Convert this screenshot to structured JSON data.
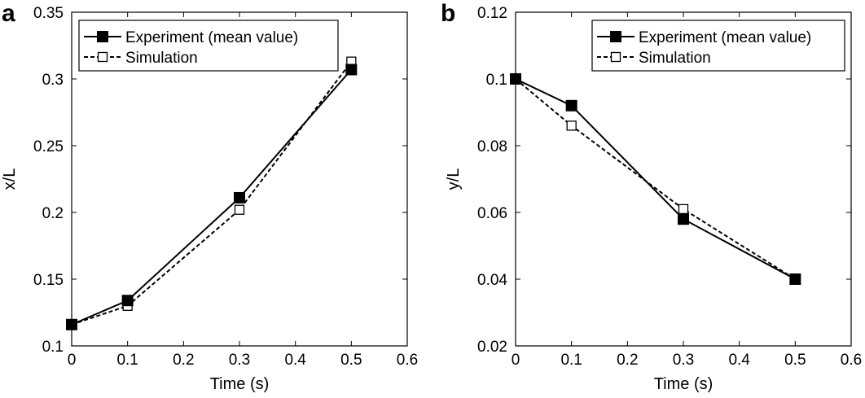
{
  "chart_data": [
    {
      "panel": "a",
      "type": "line",
      "xlabel": "Time (s)",
      "ylabel": "x/L",
      "xlim": [
        0,
        0.6
      ],
      "ylim": [
        0.1,
        0.35
      ],
      "xticks": [
        "0",
        "0.1",
        "0.2",
        "0.3",
        "0.4",
        "0.5",
        "0.6"
      ],
      "yticks": [
        "0.1",
        "0.15",
        "0.2",
        "0.25",
        "0.3",
        "0.35"
      ],
      "legend_position": "top-left",
      "series": [
        {
          "name": "Experiment (mean value)",
          "style": "solid",
          "marker": "filled-square",
          "x": [
            0,
            0.1,
            0.3,
            0.5
          ],
          "y": [
            0.116,
            0.134,
            0.211,
            0.307
          ]
        },
        {
          "name": "Simulation",
          "style": "dashed",
          "marker": "open-square",
          "x": [
            0,
            0.1,
            0.3,
            0.5
          ],
          "y": [
            0.116,
            0.13,
            0.202,
            0.313
          ]
        }
      ]
    },
    {
      "panel": "b",
      "type": "line",
      "xlabel": "Time (s)",
      "ylabel": "y/L",
      "xlim": [
        0,
        0.6
      ],
      "ylim": [
        0.02,
        0.12
      ],
      "xticks": [
        "0",
        "0.1",
        "0.2",
        "0.3",
        "0.4",
        "0.5",
        "0.6"
      ],
      "yticks": [
        "0.02",
        "0.04",
        "0.06",
        "0.08",
        "0.1",
        "0.12"
      ],
      "legend_position": "top-right",
      "series": [
        {
          "name": "Experiment (mean value)",
          "style": "solid",
          "marker": "filled-square",
          "x": [
            0,
            0.1,
            0.3,
            0.5
          ],
          "y": [
            0.1,
            0.092,
            0.058,
            0.04
          ]
        },
        {
          "name": "Simulation",
          "style": "dashed",
          "marker": "open-square",
          "x": [
            0,
            0.1,
            0.3,
            0.5
          ],
          "y": [
            0.1,
            0.086,
            0.061,
            0.04
          ]
        }
      ]
    }
  ]
}
